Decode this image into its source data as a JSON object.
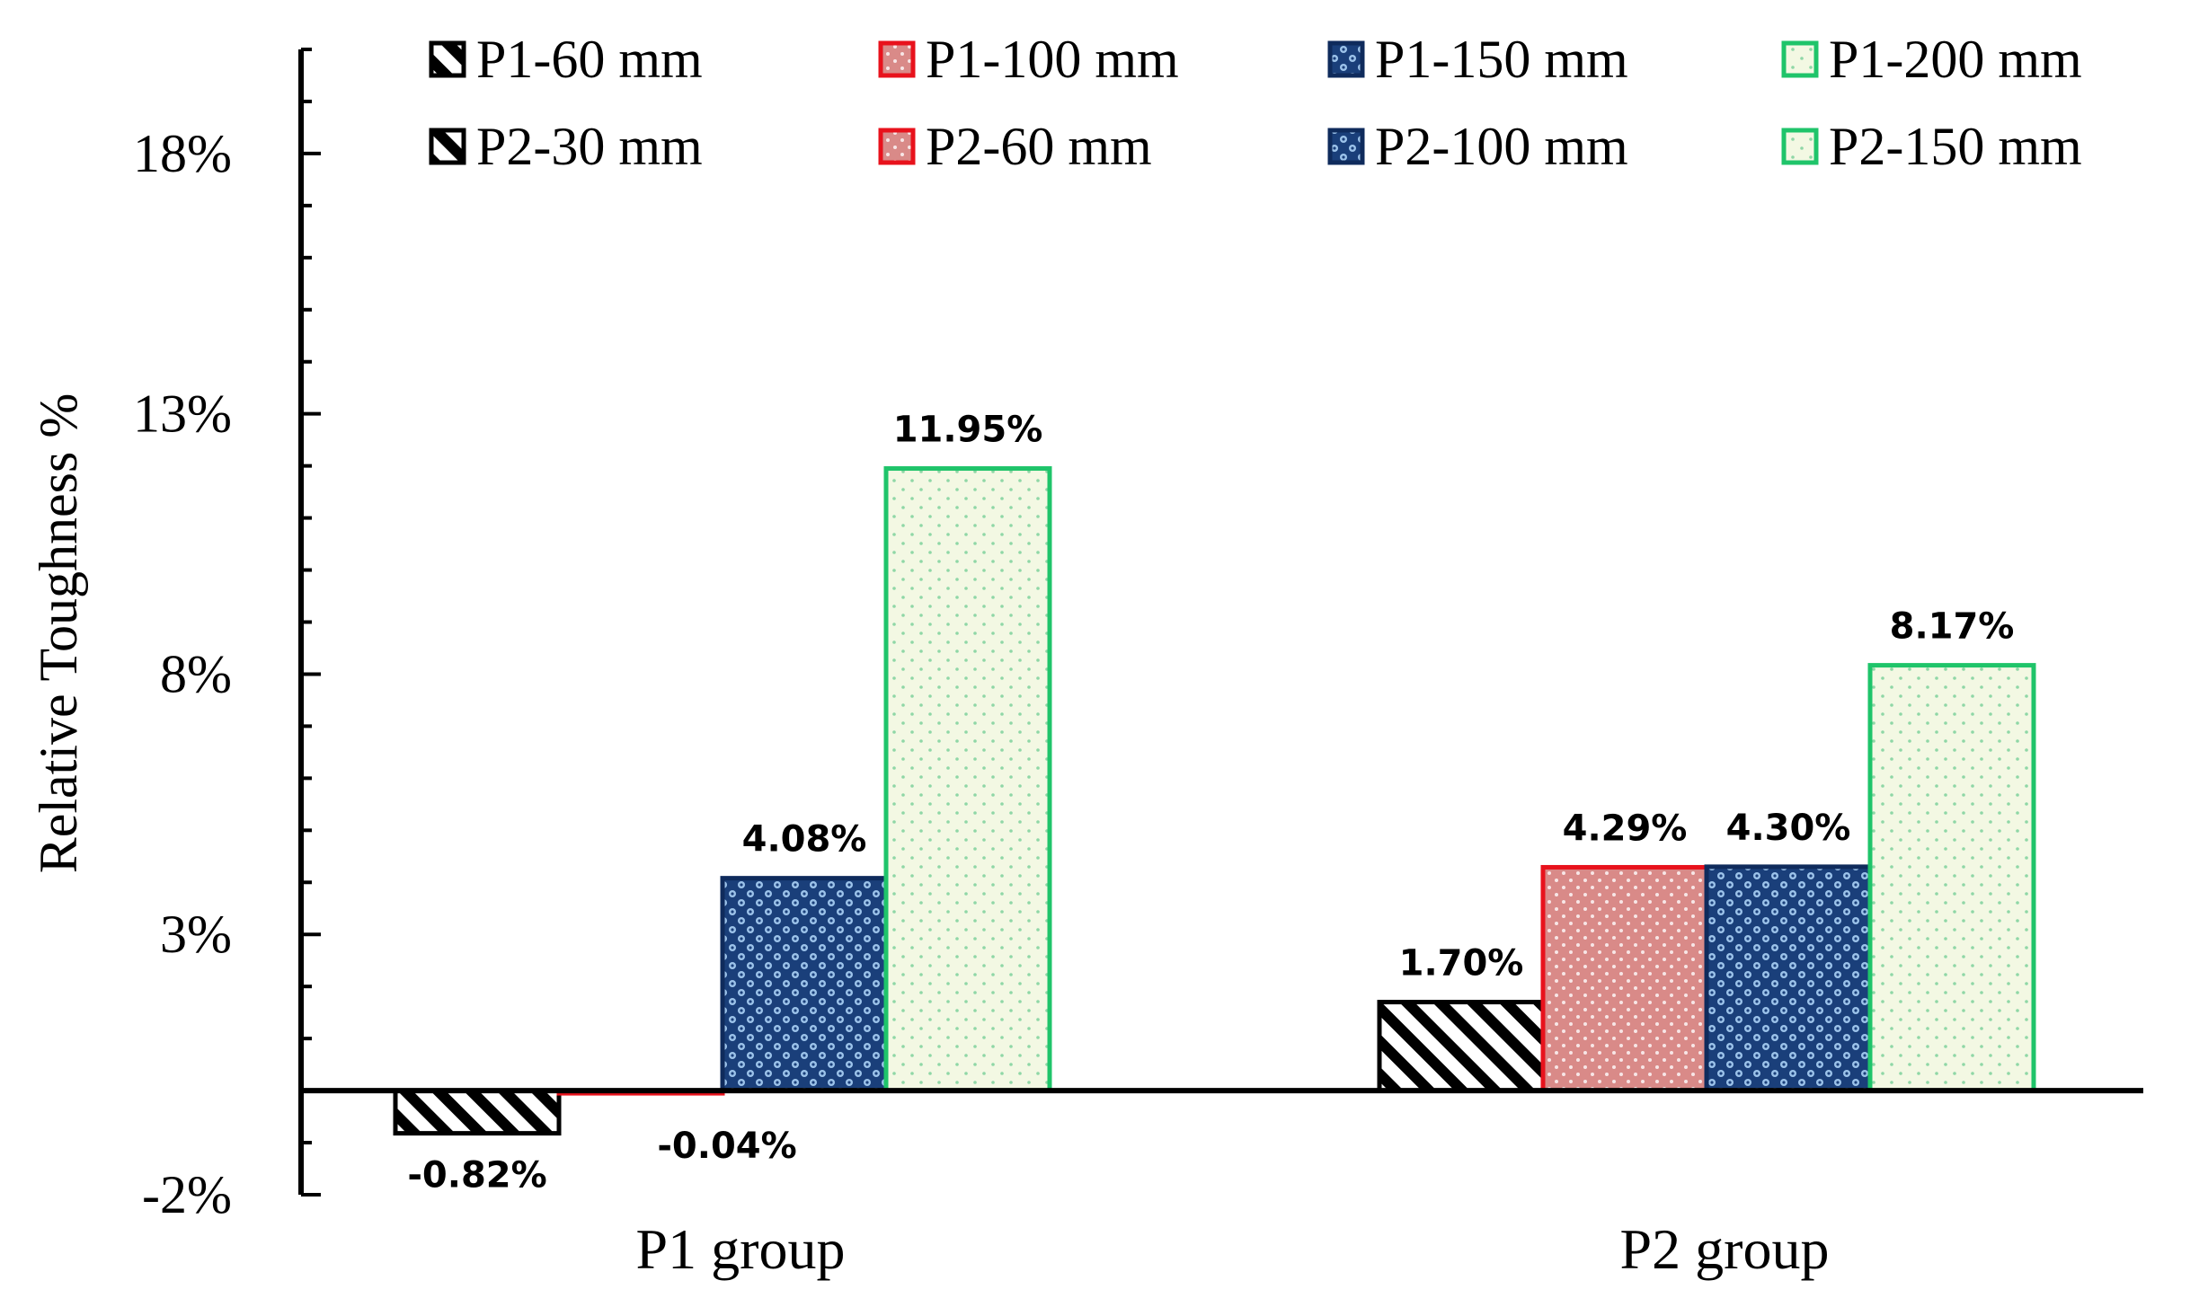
{
  "chart_data": {
    "type": "bar",
    "title": "",
    "xlabel": "",
    "ylabel": "Relative Toughness %",
    "ylim": [
      -2,
      20
    ],
    "yticks": [
      -2,
      3,
      8,
      13,
      18
    ],
    "ytick_labels": [
      "-2%",
      "3%",
      "8%",
      "13%",
      "18%"
    ],
    "legend_position": "top",
    "groups": [
      {
        "name": "P1 group",
        "series": [
          {
            "name": "P1-60 mm",
            "value": -0.82,
            "label": "-0.82%",
            "pattern": "hatch",
            "color": "#000000"
          },
          {
            "name": "P1-100 mm",
            "value": -0.04,
            "label": "-0.04%",
            "pattern": "dots-red",
            "color": "#e8121c"
          },
          {
            "name": "P1-150 mm",
            "value": 4.08,
            "label": "4.08%",
            "pattern": "check-blue",
            "color": "#0f2b5c"
          },
          {
            "name": "P1-200 mm",
            "value": 11.95,
            "label": "11.95%",
            "pattern": "dots-green",
            "color": "#1fc46a"
          }
        ]
      },
      {
        "name": "P2 group",
        "series": [
          {
            "name": "P2-30 mm",
            "value": 1.7,
            "label": "1.70%",
            "pattern": "hatch",
            "color": "#000000"
          },
          {
            "name": "P2-60 mm",
            "value": 4.29,
            "label": "4.29%",
            "pattern": "dots-red",
            "color": "#e8121c"
          },
          {
            "name": "P2-100 mm",
            "value": 4.3,
            "label": "4.30%",
            "pattern": "check-blue",
            "color": "#0f2b5c"
          },
          {
            "name": "P2-150 mm",
            "value": 8.17,
            "label": "8.17%",
            "pattern": "dots-green",
            "color": "#1fc46a"
          }
        ]
      }
    ],
    "legend": [
      {
        "name": "P1-60 mm",
        "pattern": "hatch",
        "color": "#000000"
      },
      {
        "name": "P1-100 mm",
        "pattern": "dots-red",
        "color": "#e8121c"
      },
      {
        "name": "P1-150 mm",
        "pattern": "check-blue",
        "color": "#0f2b5c"
      },
      {
        "name": "P1-200 mm",
        "pattern": "dots-green",
        "color": "#1fc46a"
      },
      {
        "name": "P2-30 mm",
        "pattern": "hatch",
        "color": "#000000"
      },
      {
        "name": "P2-60 mm",
        "pattern": "dots-red",
        "color": "#e8121c"
      },
      {
        "name": "P2-100 mm",
        "pattern": "check-blue",
        "color": "#0f2b5c"
      },
      {
        "name": "P2-150 mm",
        "pattern": "dots-green",
        "color": "#1fc46a"
      }
    ]
  }
}
